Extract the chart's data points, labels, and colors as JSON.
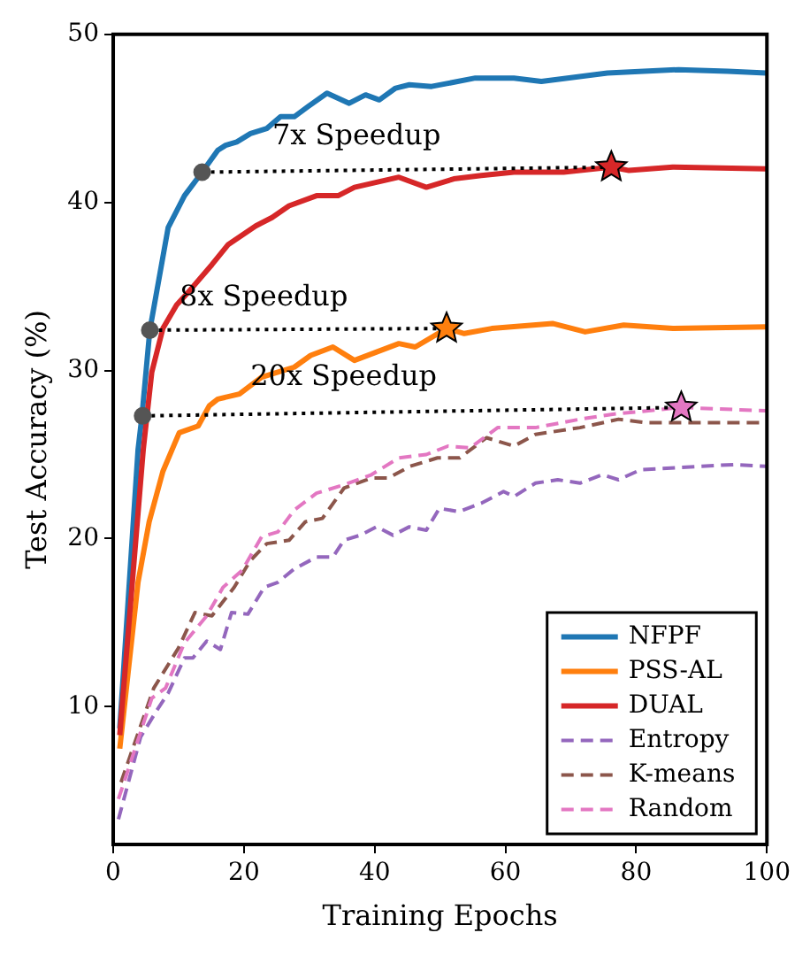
{
  "chart_data": {
    "type": "line",
    "xlabel": "Training Epochs",
    "ylabel": "Test Accuracy (%)",
    "xlim": [
      0,
      100
    ],
    "ylim": [
      1.8,
      50
    ],
    "xticks": [
      0,
      20,
      40,
      60,
      80,
      100
    ],
    "yticks": [
      10,
      20,
      30,
      40,
      50
    ],
    "grid": false,
    "legend": "bottom right",
    "marker": "none",
    "line_style": "solid",
    "annotations": [
      "7x Speedup",
      "8x Speedup",
      "20x Speedup"
    ],
    "series": [
      {
        "name": "NFPF",
        "color": "#1f77b4",
        "x": [
          1,
          3.8,
          4.4,
          5.6,
          8.4,
          10.9,
          13.6,
          16,
          17.2,
          18.9,
          21,
          23.5,
          25.6,
          27.7,
          29.8,
          32.7,
          36.1,
          38.6,
          40.7,
          43.2,
          45.3,
          48.7,
          55.4,
          61.3,
          65.5,
          75.6,
          86.5,
          94,
          99.9
        ],
        "values": [
          8.7,
          25.3,
          27.3,
          32.4,
          38.5,
          40.4,
          41.8,
          43.1,
          43.4,
          43.6,
          44.1,
          44.4,
          45.1,
          45.1,
          45.7,
          46.5,
          45.9,
          46.4,
          46.1,
          46.8,
          47,
          46.9,
          47.4,
          47.4,
          47.2,
          47.7,
          47.9,
          47.8,
          47.7
        ]
      },
      {
        "name": "PSS-AL",
        "color": "#ff7f0e",
        "x": [
          1,
          3.8,
          5.5,
          7.6,
          10.1,
          13,
          14.7,
          16,
          19.3,
          22.7,
          25.2,
          27.7,
          30.2,
          33.6,
          36.9,
          40.3,
          43.7,
          46.2,
          51,
          53.7,
          57.9,
          67.2,
          72.2,
          78.1,
          85.6,
          99.9
        ],
        "values": [
          7.5,
          17.4,
          21,
          24,
          26.3,
          26.7,
          27.9,
          28.3,
          28.6,
          29.6,
          29.9,
          30.2,
          30.9,
          31.4,
          30.6,
          31.1,
          31.6,
          31.4,
          32.5,
          32.2,
          32.5,
          32.8,
          32.3,
          32.7,
          32.5,
          32.6
        ]
      },
      {
        "name": "DUAL",
        "color": "#d62728",
        "x": [
          1,
          4.6,
          5.9,
          7.6,
          9.7,
          11.8,
          15.1,
          17.6,
          21.8,
          24.3,
          26.9,
          31.1,
          34.4,
          36.9,
          43.7,
          47.9,
          52.1,
          56.3,
          61.3,
          68.9,
          76.2,
          78.9,
          85.6,
          99.9
        ],
        "values": [
          8.3,
          25.3,
          29.9,
          32.5,
          33.9,
          34.8,
          36.3,
          37.5,
          38.6,
          39.1,
          39.8,
          40.4,
          40.4,
          40.9,
          41.5,
          40.9,
          41.4,
          41.6,
          41.8,
          41.8,
          42.1,
          41.9,
          42.1,
          42
        ]
      },
      {
        "name": "Entropy",
        "color": "#9467bd",
        "line_style": "dashed",
        "x": [
          0.8,
          4.2,
          6.7,
          8.4,
          10.9,
          12.2,
          14.3,
          16.4,
          18.1,
          20.6,
          23.1,
          25.2,
          27.7,
          31.1,
          33.6,
          35.3,
          37.8,
          40.3,
          42.8,
          45.3,
          47.9,
          49.9,
          52.9,
          56.3,
          59.7,
          61.3,
          64.6,
          68,
          71.4,
          74.8,
          77.3,
          80.7,
          89.9,
          94.9,
          99.9
        ],
        "values": [
          3.3,
          8.2,
          9.8,
          10.8,
          12.9,
          12.9,
          13.9,
          13.4,
          15.6,
          15.5,
          17.1,
          17.4,
          18.2,
          18.9,
          18.9,
          19.9,
          20.2,
          20.7,
          20.2,
          20.7,
          20.5,
          21.8,
          21.6,
          22.1,
          22.8,
          22.5,
          23.3,
          23.5,
          23.3,
          23.8,
          23.5,
          24.1,
          24.3,
          24.4,
          24.3
        ]
      },
      {
        "name": "K-means",
        "color": "#8c564b",
        "line_style": "dashed",
        "x": [
          1.2,
          6.2,
          10,
          12.5,
          15.1,
          18.5,
          21,
          23.5,
          26.9,
          29.4,
          32,
          35.3,
          39.5,
          42.1,
          45.4,
          49.6,
          53,
          57.1,
          61.3,
          64.6,
          71.4,
          77.3,
          81.5,
          89.9,
          99.9
        ],
        "values": [
          5.5,
          11.1,
          13.5,
          15.6,
          15.4,
          17.1,
          18.7,
          19.7,
          19.9,
          21,
          21.2,
          23,
          23.6,
          23.6,
          24.3,
          24.8,
          24.8,
          26,
          25.5,
          26.2,
          26.6,
          27.1,
          26.9,
          26.9,
          26.9
        ]
      },
      {
        "name": "Random",
        "color": "#e377c2",
        "line_style": "dashed",
        "x": [
          0.8,
          5.9,
          8,
          10.9,
          14.3,
          16.8,
          19.7,
          22.7,
          25.2,
          27.7,
          31.1,
          35.3,
          39.5,
          43.7,
          47.9,
          51.2,
          54.6,
          58.8,
          64.6,
          71.4,
          76.4,
          86.9,
          99.9
        ],
        "values": [
          4.5,
          10.5,
          11.1,
          13.8,
          15.4,
          17.1,
          18.1,
          20.1,
          20.4,
          21.7,
          22.7,
          23.2,
          23.8,
          24.8,
          25,
          25.5,
          25.4,
          26.6,
          26.6,
          27.1,
          27.4,
          27.8,
          27.6
        ]
      },
      {
        "color": "#000000",
        "line_style": "dotted",
        "x": [
          13.6,
          76.2
        ],
        "values": [
          41.8,
          42.1
        ]
      },
      {
        "color": "#000000",
        "line_style": "dotted",
        "x": [
          5.6,
          51
        ],
        "values": [
          32.4,
          32.5
        ]
      },
      {
        "color": "#000000",
        "line_style": "dotted",
        "x": [
          4.5,
          86.9
        ],
        "values": [
          27.3,
          27.8
        ]
      },
      {
        "type": "scatter",
        "marker": "circle",
        "color": "#555555",
        "x": [
          13.6,
          5.6,
          4.5
        ],
        "values": [
          41.8,
          32.4,
          27.3
        ]
      },
      {
        "type": "scatter",
        "marker": "star",
        "colors": [
          "#d62728",
          "#ff7f0e",
          "#e377c2"
        ],
        "x": [
          76.2,
          51,
          86.9
        ],
        "values": [
          42.1,
          32.5,
          27.8
        ]
      }
    ]
  }
}
